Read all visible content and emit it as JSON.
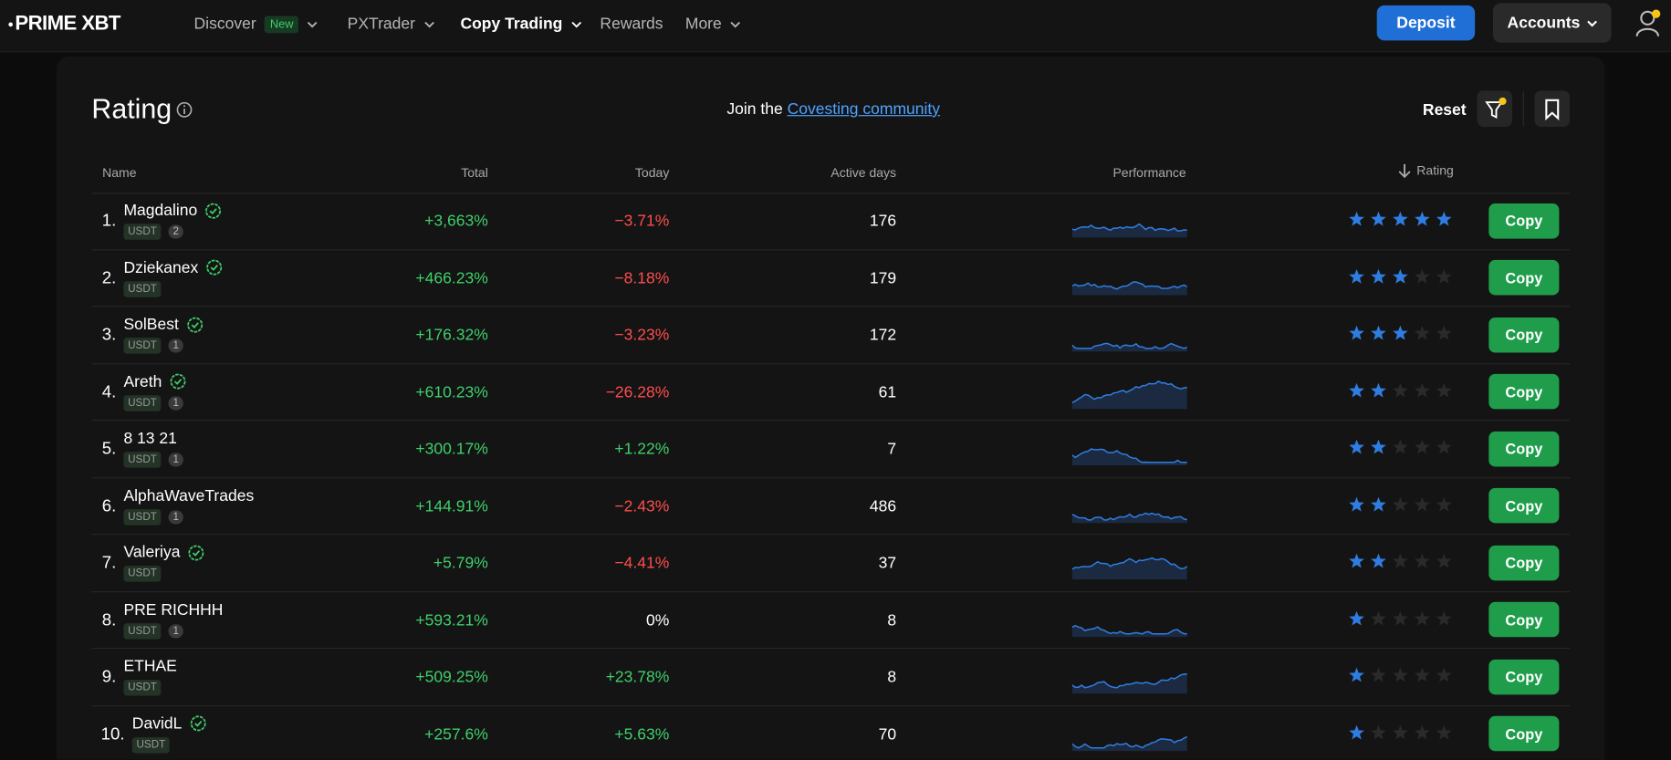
{
  "nav": {
    "logo": "PRIME XBT",
    "items": [
      {
        "label": "Discover",
        "badge": "New",
        "dropdown": true
      },
      {
        "label": "PXTrader",
        "dropdown": true
      },
      {
        "label": "Copy Trading",
        "dropdown": true,
        "active": true
      },
      {
        "label": "Rewards",
        "dropdown": false
      },
      {
        "label": "More",
        "dropdown": true
      }
    ],
    "deposit": "Deposit",
    "accounts": "Accounts"
  },
  "panel": {
    "title": "Rating",
    "join_text": "Join the",
    "link": "Covesting community",
    "reset": "Reset"
  },
  "table": {
    "columns": [
      "Name",
      "Total",
      "Today",
      "Active days",
      "Performance",
      "Rating"
    ],
    "rows": [
      {
        "rank": "1.",
        "name": "Magdalino",
        "verified": true,
        "currency": "USDT",
        "count": "2",
        "total": "+3,663%",
        "today": "−3.71%",
        "active_days": "176",
        "rating": 5,
        "action": "Copy"
      },
      {
        "rank": "2.",
        "name": "Dziekanex",
        "verified": true,
        "currency": "USDT",
        "total": "+466.23%",
        "today": "−8.18%",
        "active_days": "179",
        "rating": 3,
        "action": "Copy"
      },
      {
        "rank": "3.",
        "name": "SolBest",
        "verified": true,
        "currency": "USDT",
        "count": "1",
        "total": "+176.32%",
        "today": "−3.23%",
        "active_days": "172",
        "rating": 3,
        "action": "Copy"
      },
      {
        "rank": "4.",
        "name": "Areth",
        "verified": true,
        "currency": "USDT",
        "count": "1",
        "total": "+610.23%",
        "today": "−26.28%",
        "active_days": "61",
        "rating": 2,
        "action": "Copy"
      },
      {
        "rank": "5.",
        "name": "8 13 21",
        "verified": false,
        "currency": "USDT",
        "count": "1",
        "total": "+300.17%",
        "today": "+1.22%",
        "active_days": "7",
        "rating": 2,
        "action": "Copy"
      },
      {
        "rank": "6.",
        "name": "AlphaWaveTrades",
        "verified": false,
        "currency": "USDT",
        "count": "1",
        "total": "+144.91%",
        "today": "−2.43%",
        "active_days": "486",
        "rating": 2,
        "action": "Copy"
      },
      {
        "rank": "7.",
        "name": "Valeriya",
        "verified": true,
        "currency": "USDT",
        "total": "+5.79%",
        "today": "−4.41%",
        "active_days": "37",
        "rating": 2,
        "action": "Copy"
      },
      {
        "rank": "8.",
        "name": "PRE RICHHH",
        "verified": false,
        "currency": "USDT",
        "count": "1",
        "total": "+593.21%",
        "today": "0%",
        "active_days": "8",
        "rating": 1,
        "action": "Copy"
      },
      {
        "rank": "9.",
        "name": "ETHAE",
        "verified": false,
        "currency": "USDT",
        "total": "+509.25%",
        "today": "+23.78%",
        "active_days": "8",
        "rating": 1,
        "action": "Copy"
      },
      {
        "rank": "10.",
        "name": "DavidL",
        "verified": true,
        "currency": "USDT",
        "total": "+257.6%",
        "today": "+5.63%",
        "active_days": "70",
        "rating": 1,
        "action": "Copy"
      }
    ]
  }
}
